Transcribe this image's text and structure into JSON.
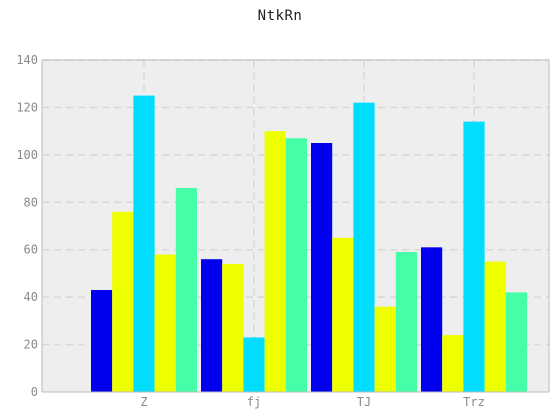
{
  "chart_data": {
    "type": "bar",
    "title": "NtkRn",
    "xlabel": "",
    "ylabel": "",
    "categories": [
      "Z",
      "fj",
      "TJ",
      "Trz"
    ],
    "series": [
      {
        "values": [
          43,
          56,
          105,
          61
        ]
      },
      {
        "values": [
          76,
          54,
          65,
          24
        ]
      },
      {
        "values": [
          125,
          23,
          122,
          114
        ]
      },
      {
        "values": [
          58,
          110,
          36,
          55
        ]
      },
      {
        "values": [
          86,
          107,
          59,
          42
        ]
      }
    ],
    "colors": [
      "#0000ee",
      "#eeff00",
      "#00ddff",
      "#eeff00",
      "#44ffa8"
    ],
    "ylim": [
      0,
      140
    ],
    "yticks": [
      0,
      20,
      40,
      60,
      80,
      100,
      120,
      140
    ],
    "grid": true,
    "legend": "none",
    "background": "#eeeeee"
  }
}
